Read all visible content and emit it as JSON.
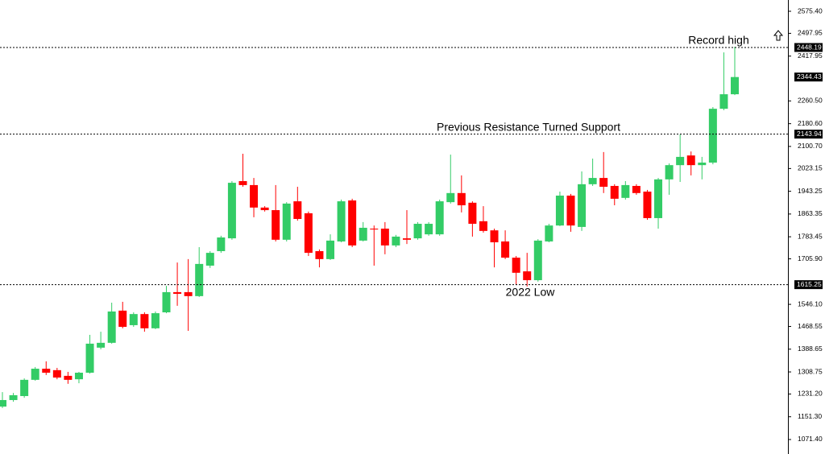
{
  "chart_data": {
    "type": "candlestick",
    "up_color": "#33cc66",
    "down_color": "#ff0000",
    "open": [
      1187,
      1210,
      1224,
      1281,
      1320,
      1315,
      1295,
      1283,
      1306,
      1394,
      1411,
      1524,
      1473,
      1512,
      1462,
      1518,
      1589,
      1589,
      1575,
      1682,
      1733,
      1778,
      1979,
      1965,
      1886,
      1877,
      1773,
      1908,
      1866,
      1733,
      1705,
      1767,
      1911,
      1770,
      1812,
      1812,
      1753,
      1778,
      1778,
      1792,
      1792,
      1905,
      1937,
      1903,
      1838,
      1806,
      1767,
      1710,
      1662,
      1631,
      1767,
      1823,
      1928,
      1818,
      1968,
      1990,
      1962,
      1920,
      1962,
      1942,
      1849,
      1985,
      2035,
      2069,
      2035,
      2044,
      2233,
      2284
    ],
    "high": [
      1238,
      1235,
      1286,
      1326,
      1346,
      1323,
      1309,
      1309,
      1439,
      1450,
      1552,
      1555,
      1518,
      1518,
      1521,
      1611,
      1693,
      1705,
      1747,
      1733,
      1787,
      1979,
      2075,
      1990,
      1891,
      1965,
      1905,
      1959,
      1872,
      1739,
      1792,
      1914,
      1917,
      1835,
      1823,
      1835,
      1790,
      1877,
      1835,
      1835,
      1914,
      2072,
      1999,
      1908,
      1891,
      1812,
      1806,
      1716,
      1727,
      1775,
      1829,
      1942,
      1934,
      2013,
      2058,
      2081,
      1968,
      1979,
      1968,
      1948,
      1990,
      2041,
      2143,
      2083,
      2064,
      2239,
      2431,
      2451
    ],
    "low": [
      1182,
      1204,
      1218,
      1278,
      1298,
      1283,
      1267,
      1269,
      1303,
      1388,
      1408,
      1462,
      1467,
      1450,
      1459,
      1515,
      1541,
      1453,
      1572,
      1674,
      1727,
      1773,
      1959,
      1852,
      1872,
      1767,
      1767,
      1840,
      1716,
      1676,
      1702,
      1764,
      1747,
      1767,
      1682,
      1722,
      1747,
      1758,
      1773,
      1787,
      1787,
      1900,
      1869,
      1784,
      1798,
      1676,
      1705,
      1614,
      1609,
      1626,
      1764,
      1821,
      1801,
      1804,
      1962,
      1937,
      1894,
      1914,
      1931,
      1843,
      1812,
      1931,
      1976,
      1999,
      1985,
      2038,
      2228,
      2281
    ],
    "close": [
      1210,
      1227,
      1281,
      1320,
      1306,
      1289,
      1281,
      1306,
      1408,
      1411,
      1521,
      1467,
      1512,
      1462,
      1515,
      1589,
      1583,
      1575,
      1688,
      1727,
      1781,
      1973,
      1965,
      1886,
      1877,
      1773,
      1900,
      1846,
      1727,
      1705,
      1770,
      1908,
      1753,
      1815,
      1809,
      1753,
      1784,
      1773,
      1829,
      1829,
      1908,
      1937,
      1894,
      1829,
      1804,
      1764,
      1710,
      1657,
      1631,
      1770,
      1823,
      1928,
      1823,
      1968,
      1990,
      1959,
      1917,
      1965,
      1937,
      1849,
      1985,
      2035,
      2064,
      2035,
      2044,
      2233,
      2284,
      2344.43
    ],
    "ylim": [
      1020.5,
      2615
    ],
    "yticks": [
      {
        "value": 2575.4,
        "label": "2575.40"
      },
      2497.95,
      2417.95,
      {
        "value": 2260.5,
        "label": "2260.50"
      },
      {
        "value": 2180.6,
        "label": "2180.60"
      },
      {
        "value": 2100.7,
        "label": "2100.70"
      },
      2023.15,
      1943.25,
      1863.35,
      1783.45,
      {
        "value": 1705.9,
        "label": "1705.90"
      },
      {
        "value": 1546.1,
        "label": "1546.10"
      },
      1468.55,
      1388.65,
      1308.75,
      {
        "value": 1231.2,
        "label": "1231.20"
      },
      {
        "value": 1151.3,
        "label": "1151.30"
      },
      {
        "value": 1071.4,
        "label": "1071.40"
      }
    ],
    "levels": [
      2448.19,
      2143.94,
      1615.25
    ],
    "current_price": 2344.43,
    "annotations": [
      "Record high",
      "Previous Resistance Turned Support",
      "2022 Low"
    ]
  }
}
